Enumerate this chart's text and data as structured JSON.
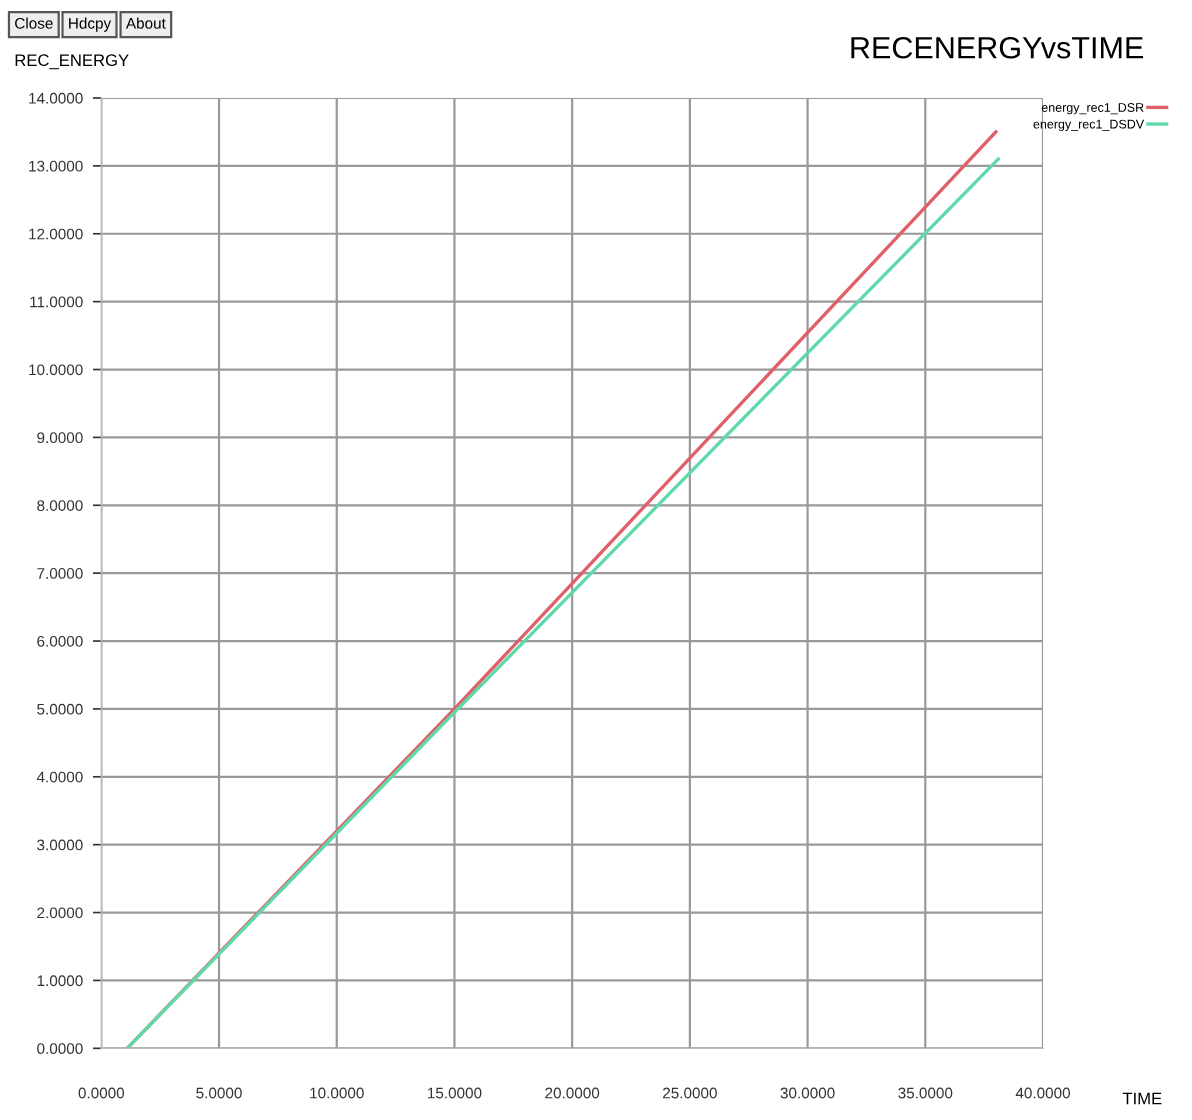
{
  "chart_data": {
    "type": "line",
    "title": "RECENERGYvsTIME",
    "xlabel": "TIME",
    "ylabel": "REC_ENERGY",
    "annotations": [
      "Close",
      "Hdcpy",
      "About"
    ],
    "series": [
      {
        "name": "energy_rec1_DSR",
        "color": "#e0606a",
        "x": [
          1.1,
          15,
          38.0
        ],
        "values": [
          0,
          5.0,
          13.5
        ]
      },
      {
        "name": "energy_rec1_DSDV",
        "color": "#5fd9a8",
        "x": [
          1.1,
          15,
          38.1
        ],
        "values": [
          0,
          4.95,
          13.1
        ]
      }
    ],
    "xlim": [
      0,
      40
    ],
    "ylim": [
      0,
      14
    ],
    "xticks": [
      {
        "value": 0,
        "label": "0.0000"
      },
      {
        "value": 5,
        "label": "5.0000"
      },
      {
        "value": 10,
        "label": "10.0000"
      },
      {
        "value": 15,
        "label": "15.0000"
      },
      {
        "value": 20,
        "label": "20.0000"
      },
      {
        "value": 25,
        "label": "25.0000"
      },
      {
        "value": 30,
        "label": "30.0000"
      },
      {
        "value": 35,
        "label": "35.0000"
      },
      {
        "value": 40,
        "label": "40.0000"
      }
    ],
    "yticks": [
      {
        "value": 0,
        "label": "0.0000"
      },
      {
        "value": 1,
        "label": "1.0000"
      },
      {
        "value": 2,
        "label": "2.0000"
      },
      {
        "value": 3,
        "label": "3.0000"
      },
      {
        "value": 4,
        "label": "4.0000"
      },
      {
        "value": 5,
        "label": "5.0000"
      },
      {
        "value": 6,
        "label": "6.0000"
      },
      {
        "value": 7,
        "label": "7.0000"
      },
      {
        "value": 8,
        "label": "8.0000"
      },
      {
        "value": 9,
        "label": "9.0000"
      },
      {
        "value": 10,
        "label": "10.0000"
      },
      {
        "value": 11,
        "label": "11.0000"
      },
      {
        "value": 12,
        "label": "12.0000"
      },
      {
        "value": 13,
        "label": "13.0000"
      },
      {
        "value": 14,
        "label": "14.0000"
      }
    ],
    "grid": true,
    "legend": "top right",
    "line_style": "solid"
  }
}
